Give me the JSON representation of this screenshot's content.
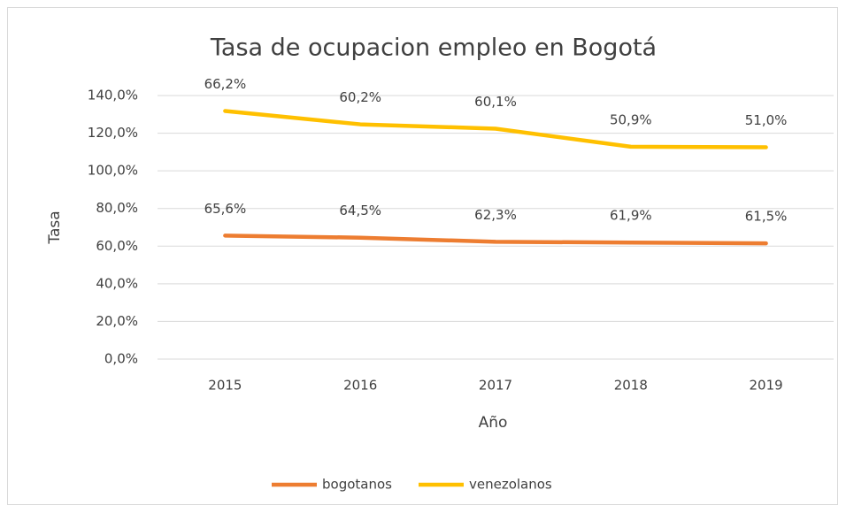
{
  "chart_data": {
    "type": "line",
    "stacked": true,
    "title": "Tasa de ocupacion empleo en Bogotá",
    "x_label": "Año",
    "y_label": "Tasa",
    "categories": [
      "2015",
      "2016",
      "2017",
      "2018",
      "2019"
    ],
    "series": [
      {
        "name": "bogotanos",
        "color": "#ED7D31",
        "values": [
          65.6,
          64.5,
          62.3,
          61.9,
          61.5
        ],
        "value_labels": [
          "65,6%",
          "64,5%",
          "62,3%",
          "61,9%",
          "61,5%"
        ]
      },
      {
        "name": "venezolanos",
        "color": "#FFC000",
        "values": [
          66.2,
          60.2,
          60.1,
          50.9,
          51.0
        ],
        "value_labels": [
          "66,2%",
          "60,2%",
          "60,1%",
          "50,9%",
          "51,0%"
        ]
      }
    ],
    "ylim": [
      0,
      140
    ],
    "yticks": [
      {
        "value": 0,
        "label": "0,0%"
      },
      {
        "value": 20,
        "label": "20,0%"
      },
      {
        "value": 40,
        "label": "40,0%"
      },
      {
        "value": 60,
        "label": "60,0%"
      },
      {
        "value": 80,
        "label": "80,0%"
      },
      {
        "value": 100,
        "label": "100,0%"
      },
      {
        "value": 120,
        "label": "120,0%"
      },
      {
        "value": 140,
        "label": "140,0%"
      }
    ],
    "grid": true,
    "legend": "bottom"
  }
}
